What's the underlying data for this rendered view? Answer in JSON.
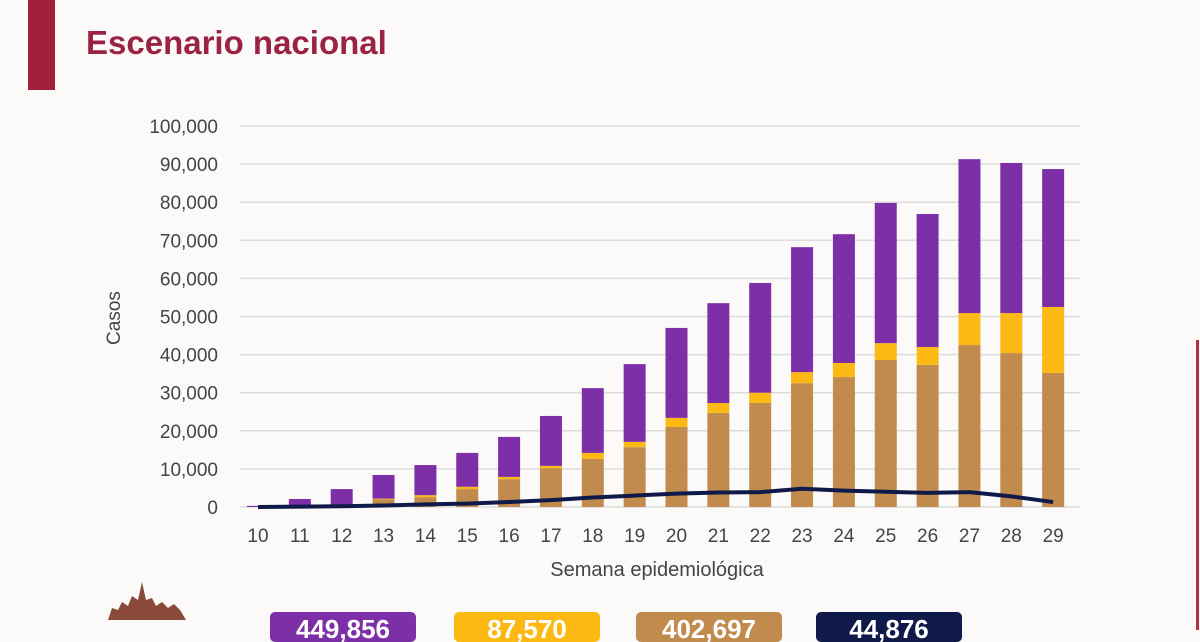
{
  "title": "Escenario nacional",
  "colors": {
    "purple": "#7d2fa8",
    "yellow": "#fdb913",
    "brown": "#c08b4c",
    "navy": "#0f1a4a",
    "title": "#9b2247",
    "grid": "#dcdcdc"
  },
  "legend_values": [
    "449,856",
    "87,570",
    "402,697",
    "44,876"
  ],
  "chart_data": {
    "type": "bar",
    "stacked": true,
    "title": "Escenario nacional",
    "xlabel": "Semana epidemiológica",
    "ylabel": "Casos",
    "ylim": [
      0,
      100000
    ],
    "yticks": [
      "0",
      "10,000",
      "20,000",
      "30,000",
      "40,000",
      "50,000",
      "60,000",
      "70,000",
      "80,000",
      "90,000",
      "100,000"
    ],
    "categories": [
      "10",
      "11",
      "12",
      "13",
      "14",
      "15",
      "16",
      "17",
      "18",
      "19",
      "20",
      "21",
      "22",
      "23",
      "24",
      "25",
      "26",
      "27",
      "28",
      "29"
    ],
    "grid": true,
    "series": [
      {
        "name": "brown",
        "color": "#c08b4c",
        "values": [
          0,
          100,
          300,
          2000,
          2600,
          4700,
          7300,
          10200,
          12600,
          15700,
          21000,
          24700,
          27300,
          32500,
          34100,
          38600,
          37300,
          42500,
          40400,
          35200
        ]
      },
      {
        "name": "yellow",
        "color": "#fdb913",
        "values": [
          0,
          0,
          0,
          200,
          500,
          600,
          600,
          600,
          1600,
          1400,
          2400,
          2600,
          2700,
          2900,
          3700,
          4400,
          4700,
          8400,
          10500,
          17300
        ]
      },
      {
        "name": "purple",
        "color": "#7d2fa8",
        "values": [
          300,
          2000,
          4400,
          6200,
          7900,
          8900,
          10500,
          13100,
          17000,
          20400,
          23600,
          26200,
          28800,
          32800,
          33800,
          36800,
          34900,
          40400,
          39400,
          36200
        ]
      }
    ],
    "line": {
      "name": "navy",
      "color": "#0f1a4a",
      "values": [
        0,
        100,
        200,
        400,
        700,
        900,
        1300,
        1800,
        2500,
        3000,
        3500,
        3800,
        3900,
        4800,
        4300,
        4000,
        3700,
        3900,
        2800,
        1300
      ]
    }
  }
}
